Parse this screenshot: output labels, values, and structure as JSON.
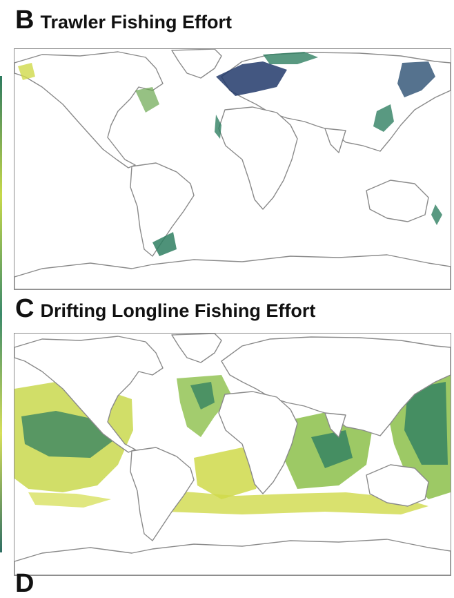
{
  "panels": {
    "b": {
      "letter": "B",
      "title": "Trawler Fishing Effort"
    },
    "c": {
      "letter": "C",
      "title": "Drifting Longline Fishing Effort"
    },
    "next": {
      "letter": "D"
    }
  },
  "colors": {
    "low": "#e6e24c",
    "mid": "#8cbf4a",
    "high": "#2f7f62",
    "max": "#223a6b",
    "coast": "#8a8a8a"
  }
}
